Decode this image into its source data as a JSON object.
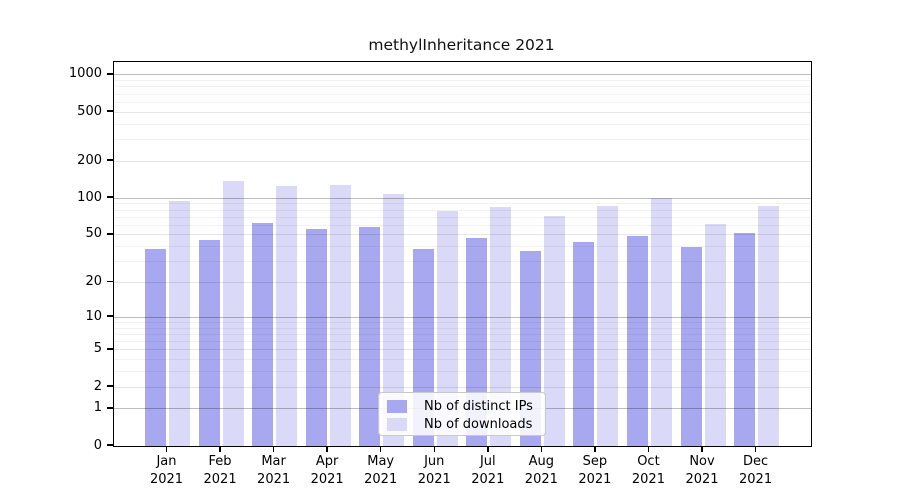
{
  "page": {
    "background": "#ffffff"
  },
  "chart_data": {
    "type": "bar",
    "title": "methylInheritance 2021",
    "year_label": "2021",
    "categories": [
      "Jan",
      "Feb",
      "Mar",
      "Apr",
      "May",
      "Jun",
      "Jul",
      "Aug",
      "Sep",
      "Oct",
      "Nov",
      "Dec"
    ],
    "series": [
      {
        "name": "Nb of distinct IPs",
        "color": "#a8a8f0",
        "values": [
          38,
          45,
          63,
          56,
          58,
          38,
          47,
          37,
          44,
          49,
          40,
          52
        ]
      },
      {
        "name": "Nb of downloads",
        "color": "#dadaf8",
        "values": [
          95,
          137,
          126,
          129,
          108,
          79,
          85,
          72,
          87,
          101,
          62,
          86
        ]
      }
    ],
    "xlabel": "",
    "ylabel": "",
    "y_ticks": [
      0,
      1,
      2,
      5,
      10,
      20,
      50,
      100,
      200,
      500,
      1000
    ],
    "y_scale": "log1p",
    "ylim": [
      0,
      1000
    ],
    "grid": true,
    "legend_position": "inside-bottom-center",
    "axis_color": "#000000",
    "gridline_color_major": "#c3c3c3",
    "gridline_color_mid": "#e4e4e4",
    "gridline_color_minor": "#f1f1f1"
  }
}
